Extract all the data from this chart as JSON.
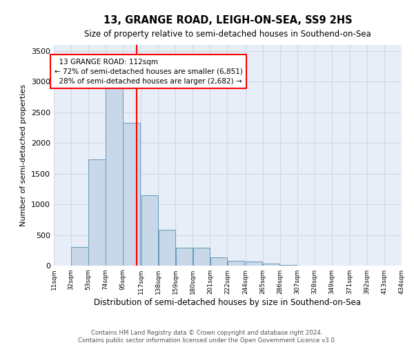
{
  "title": "13, GRANGE ROAD, LEIGH-ON-SEA, SS9 2HS",
  "subtitle": "Size of property relative to semi-detached houses in Southend-on-Sea",
  "xlabel": "Distribution of semi-detached houses by size in Southend-on-Sea",
  "ylabel": "Number of semi-detached properties",
  "footer1": "Contains HM Land Registry data © Crown copyright and database right 2024.",
  "footer2": "Contains public sector information licensed under the Open Government Licence v3.0.",
  "annotation_title": "13 GRANGE ROAD: 112sqm",
  "annotation_line1": "← 72% of semi-detached houses are smaller (6,851)",
  "annotation_line2": "28% of semi-detached houses are larger (2,682) →",
  "property_size": 112,
  "bar_color": "#c8d8e8",
  "bar_edge_color": "#6699bb",
  "grid_color": "#d0daea",
  "vline_color": "red",
  "annotation_box_color": "red",
  "background_color": "#e8eef8",
  "bin_edges": [
    11,
    32,
    53,
    74,
    95,
    117,
    138,
    159,
    180,
    201,
    222,
    244,
    265,
    286,
    307,
    328,
    349,
    371,
    392,
    413,
    434
  ],
  "bar_heights": [
    5,
    305,
    1730,
    3000,
    2330,
    1150,
    580,
    295,
    295,
    130,
    80,
    65,
    35,
    10,
    5,
    3,
    2,
    1,
    1,
    0
  ],
  "ylim": [
    0,
    3600
  ],
  "yticks": [
    0,
    500,
    1000,
    1500,
    2000,
    2500,
    3000,
    3500
  ]
}
